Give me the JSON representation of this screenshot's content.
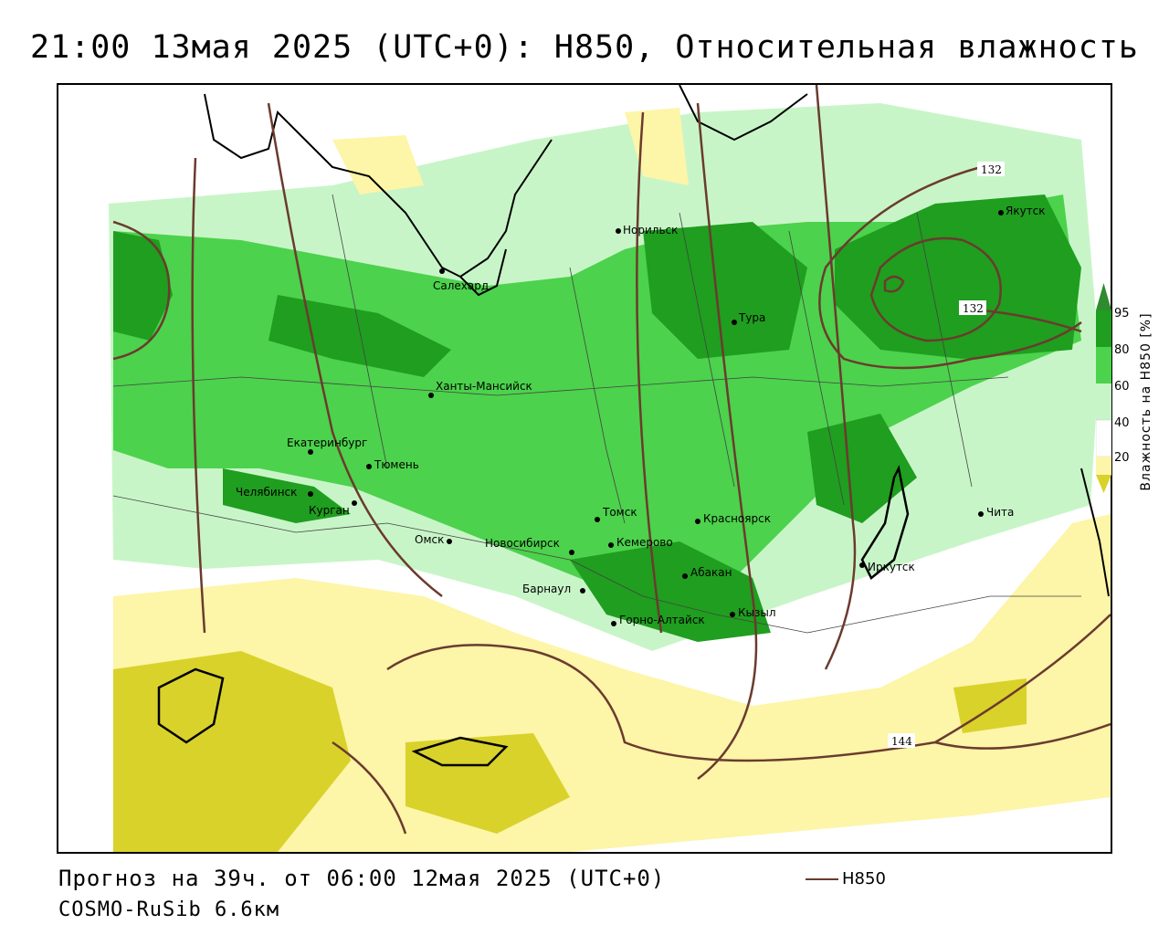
{
  "title": "21:00 13мая 2025 (UTC+0): H850, Относительная влажность",
  "footer": {
    "forecast": "Прогноз на 39ч. от 06:00 12мая 2025 (UTC+0)",
    "model": "COSMO-RuSib 6.6км",
    "legend_label": "H850",
    "legend_color": "#6b3b2e"
  },
  "colorbar": {
    "title": "Влажность на H850 [%]",
    "ticks": [
      "95",
      "80",
      "60",
      "40",
      "20"
    ],
    "colors": {
      "above_95": "#2e8b2e",
      "c80_95": "#1f9e1f",
      "c60_80": "#4cd24c",
      "c40_60": "#c8f5c8",
      "c20_40": "#ffffff",
      "c0_20": "#fdf5a8",
      "below_0": "#d9d22a"
    }
  },
  "cities": [
    {
      "name": "Норильск"
    },
    {
      "name": "Салехард"
    },
    {
      "name": "Якутск"
    },
    {
      "name": "Тура"
    },
    {
      "name": "Ханты-Мансийск"
    },
    {
      "name": "Екатеринбург"
    },
    {
      "name": "Тюмень"
    },
    {
      "name": "Челябинск"
    },
    {
      "name": "Курган"
    },
    {
      "name": "Омск"
    },
    {
      "name": "Новосибирск"
    },
    {
      "name": "Томск"
    },
    {
      "name": "Кемерово"
    },
    {
      "name": "Красноярск"
    },
    {
      "name": "Абакан"
    },
    {
      "name": "Барнаул"
    },
    {
      "name": "Горно-Алтайск"
    },
    {
      "name": "Кызыл"
    },
    {
      "name": "Иркутск"
    },
    {
      "name": "Чита"
    }
  ],
  "isoline_labels": [
    "132",
    "132",
    "144"
  ]
}
